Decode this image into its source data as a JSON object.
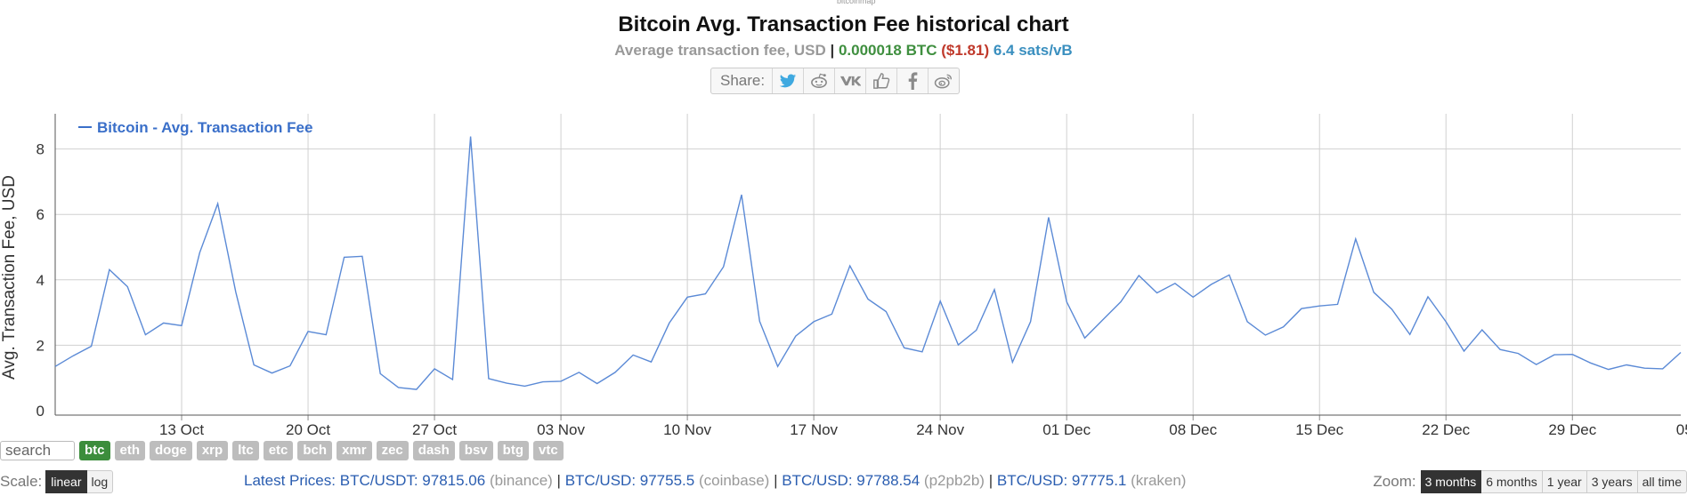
{
  "top_text": "bitcoinmap",
  "title": "Bitcoin Avg. Transaction Fee historical chart",
  "subtitle": {
    "label": "Average transaction fee, USD",
    "separator": "|",
    "btc_value": "0.000018 BTC",
    "usd_value": "($1.81)",
    "sats_value": "6.4 sats/vB"
  },
  "share": {
    "label": "Share:",
    "buttons": [
      "twitter-icon",
      "reddit-icon",
      "vk-icon",
      "like-icon",
      "facebook-icon",
      "weibo-icon"
    ]
  },
  "chart_data": {
    "type": "line",
    "ylabel": "Avg. Transaction Fee, USD",
    "xlabel": "",
    "ylim": [
      0,
      9
    ],
    "yticks": [
      0,
      2,
      4,
      6,
      8
    ],
    "grid": true,
    "legend_position": "top-left",
    "color": "#5b8ad6",
    "start_date": "2024-10-06",
    "x_tick_labels": [
      "13 Oct",
      "20 Oct",
      "27 Oct",
      "03 Nov",
      "10 Nov",
      "17 Nov",
      "24 Nov",
      "01 Dec",
      "08 Dec",
      "15 Dec",
      "22 Dec",
      "29 Dec",
      "05 Jan"
    ],
    "series": [
      {
        "name": "Bitcoin - Avg. Transaction Fee",
        "values": [
          1.35,
          1.68,
          1.97,
          4.31,
          3.79,
          2.32,
          2.68,
          2.6,
          4.83,
          6.33,
          3.62,
          1.4,
          1.15,
          1.37,
          2.42,
          2.32,
          4.69,
          4.72,
          1.13,
          0.71,
          0.65,
          1.28,
          0.95,
          8.38,
          0.98,
          0.84,
          0.75,
          0.88,
          0.9,
          1.17,
          0.83,
          1.17,
          1.7,
          1.49,
          2.68,
          3.47,
          3.57,
          4.4,
          6.6,
          2.73,
          1.35,
          2.28,
          2.72,
          2.95,
          4.43,
          3.41,
          3.03,
          1.92,
          1.8,
          3.35,
          2.01,
          2.46,
          3.7,
          1.48,
          2.72,
          5.91,
          3.33,
          2.22,
          2.78,
          3.33,
          4.13,
          3.6,
          3.89,
          3.47,
          3.86,
          4.15,
          2.72,
          2.31,
          2.56,
          3.12,
          3.2,
          3.25,
          5.25,
          3.62,
          3.1,
          2.33,
          3.48,
          2.72,
          1.82,
          2.47,
          1.87,
          1.75,
          1.41,
          1.71,
          1.72,
          1.46,
          1.26,
          1.4,
          1.3,
          1.28,
          1.78
        ]
      }
    ]
  },
  "search": {
    "placeholder": "search"
  },
  "coins": [
    {
      "label": "btc",
      "active": true
    },
    {
      "label": "eth",
      "active": false
    },
    {
      "label": "doge",
      "active": false
    },
    {
      "label": "xrp",
      "active": false
    },
    {
      "label": "ltc",
      "active": false
    },
    {
      "label": "etc",
      "active": false
    },
    {
      "label": "bch",
      "active": false
    },
    {
      "label": "xmr",
      "active": false
    },
    {
      "label": "zec",
      "active": false
    },
    {
      "label": "dash",
      "active": false
    },
    {
      "label": "bsv",
      "active": false
    },
    {
      "label": "btg",
      "active": false
    },
    {
      "label": "vtc",
      "active": false
    }
  ],
  "scale": {
    "label": "Scale:",
    "linear": "linear",
    "log": "log"
  },
  "latest_prices": {
    "label": "Latest Prices:",
    "items": [
      {
        "pair": "BTC/USDT: 97815.06",
        "exchange": "(binance)"
      },
      {
        "pair": "BTC/USD: 97755.5",
        "exchange": "(coinbase)"
      },
      {
        "pair": "BTC/USD: 97788.54",
        "exchange": "(p2pb2b)"
      },
      {
        "pair": "BTC/USD: 97775.1",
        "exchange": "(kraken)"
      }
    ]
  },
  "zoom": {
    "label": "Zoom:",
    "options": [
      "3 months",
      "6 months",
      "1 year",
      "3 years",
      "all time"
    ],
    "active_index": 0
  }
}
